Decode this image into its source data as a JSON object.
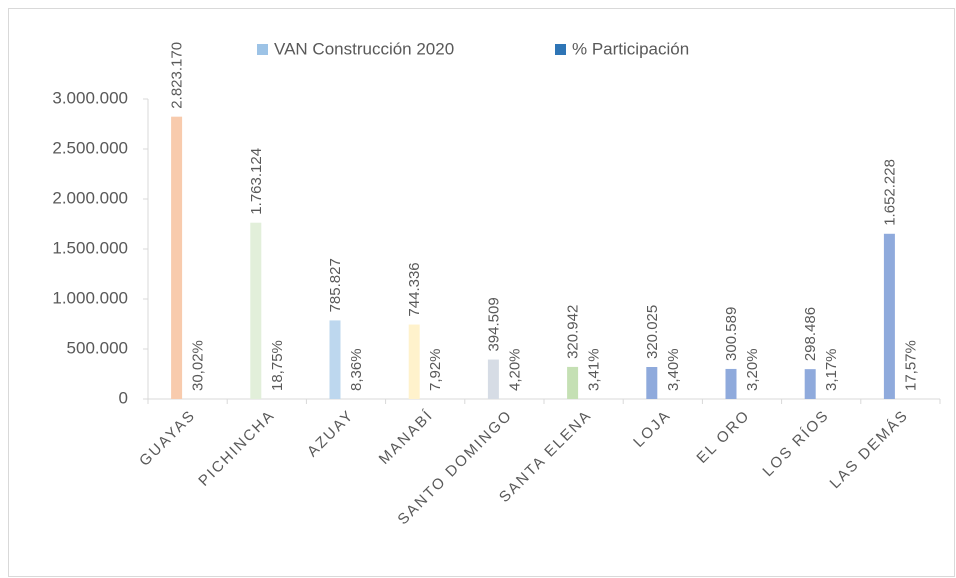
{
  "chart_data": {
    "type": "bar",
    "categories": [
      "GUAYAS",
      "PICHINCHA",
      "AZUAY",
      "MANABÍ",
      "SANTO DOMINGO",
      "SANTA ELENA",
      "LOJA",
      "EL ORO",
      "LOS RÍOS",
      "LAS DEMÁS"
    ],
    "series": [
      {
        "name": "VAN Construcción 2020",
        "color": "#9dc3e6",
        "colors": [
          "#f8cbad",
          "#e2efda",
          "#bdd7ee",
          "#fff2cc",
          "#d6dce5",
          "#c5e0b4",
          "#8faadc",
          "#8faadc",
          "#8faadc",
          "#8faadc"
        ],
        "values": [
          2823170,
          1763124,
          785827,
          744336,
          394509,
          320942,
          320025,
          300589,
          298486,
          1652228
        ],
        "value_labels": [
          "2.823.170",
          "1.763.124",
          "785.827",
          "744.336",
          "394.509",
          "320.942",
          "320.025",
          "300.589",
          "298.486",
          "1.652.228"
        ]
      },
      {
        "name": "% Participación",
        "color": "#2e75b6",
        "values": [
          30.02,
          18.75,
          8.36,
          7.92,
          4.2,
          3.41,
          3.4,
          3.2,
          3.17,
          17.57
        ],
        "value_labels": [
          "30,02%",
          "18,75%",
          "8,36%",
          "7,92%",
          "4,20%",
          "3,41%",
          "3,40%",
          "3,20%",
          "3,17%",
          "17,57%"
        ]
      }
    ],
    "ylim": [
      0,
      3000000
    ],
    "yticks": [
      0,
      {
        "value": 500000,
        "label": "500.000"
      },
      {
        "value": 1000000,
        "label": "1.000.000"
      },
      {
        "value": 1500000,
        "label": "1.500.000"
      },
      {
        "value": 2000000,
        "label": "2.000.000"
      },
      {
        "value": 2500000,
        "label": "2.500.000"
      },
      {
        "value": 3000000,
        "label": "3.000.000"
      }
    ],
    "legend": "top"
  }
}
